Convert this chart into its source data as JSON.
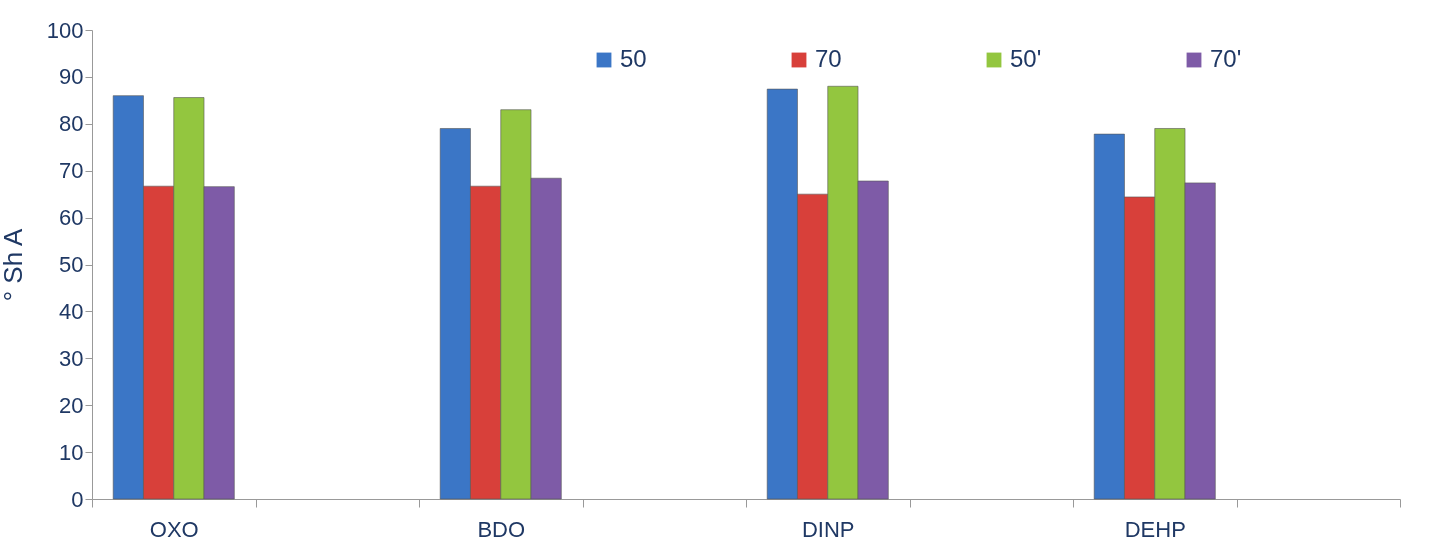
{
  "chart_data": {
    "type": "bar",
    "ylabel": "° Sh A",
    "categories": [
      "OXO",
      null,
      "BDO",
      null,
      "DINP",
      null,
      "DEHP",
      null
    ],
    "series": [
      {
        "name": "50",
        "color": "#3b76c6",
        "values": [
          86,
          null,
          79,
          null,
          87.4,
          null,
          77.8,
          null
        ]
      },
      {
        "name": "70",
        "color": "#d8403a",
        "values": [
          66.7,
          null,
          66.7,
          null,
          65,
          null,
          64.4,
          null
        ]
      },
      {
        "name": "50'",
        "color": "#93c63f",
        "values": [
          85.6,
          null,
          83,
          null,
          88,
          null,
          79,
          null
        ]
      },
      {
        "name": "70'",
        "color": "#7e5ba7",
        "values": [
          66.6,
          null,
          68.4,
          null,
          67.8,
          null,
          67.4,
          null
        ]
      }
    ],
    "ylim": [
      0,
      100
    ],
    "yticks": [
      0,
      10,
      20,
      30,
      40,
      50,
      60,
      70,
      80,
      90,
      100
    ],
    "grid": false,
    "legend": "top"
  }
}
